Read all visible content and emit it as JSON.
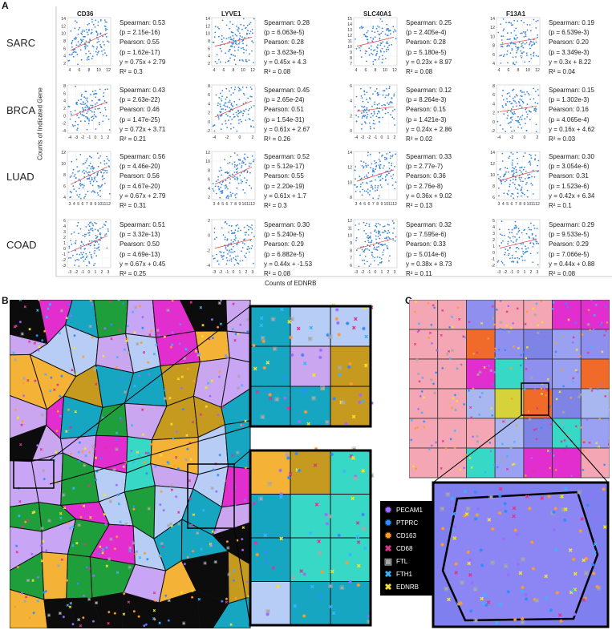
{
  "panels": {
    "a": "A",
    "b": "B",
    "c": "C"
  },
  "labels": {
    "y_axis": "Counts of Indicated Gene",
    "x_axis": "Counts of EDNRB"
  },
  "columns": [
    "CD36",
    "LYVE1",
    "SLC40A1",
    "F13A1"
  ],
  "rows": [
    "SARC",
    "BRCA",
    "LUAD",
    "COAD"
  ],
  "chart_data": {
    "type": "scatter",
    "x_variable": "EDNRB",
    "cells": [
      {
        "row": "SARC",
        "gene": "CD36",
        "xticks": [
          "4",
          "6",
          "8",
          "10",
          "12"
        ],
        "yticks": [
          "14",
          "12",
          "10",
          "8",
          "6",
          "4",
          "2"
        ],
        "stats": [
          "Spearman: 0.53",
          "(p = 2.15e-16)",
          "Pearson: 0.55",
          "(p = 1.62e-17)",
          "y = 0.75x + 2.79",
          "R² = 0.3"
        ],
        "slope": 0.75,
        "intercept": 2.79,
        "r2": 0.3
      },
      {
        "row": "SARC",
        "gene": "LYVE1",
        "xticks": [
          "4",
          "6",
          "8",
          "10",
          "12"
        ],
        "yticks": [
          "14",
          "12",
          "10",
          "8",
          "6",
          "4",
          "2"
        ],
        "stats": [
          "Spearman: 0.28",
          "(p = 6.063e-5)",
          "Pearson: 0.28",
          "(p = 3.623e-5)",
          "y = 0.45x + 4.3",
          "R² = 0.08"
        ],
        "slope": 0.45,
        "intercept": 4.3,
        "r2": 0.08
      },
      {
        "row": "SARC",
        "gene": "SLC40A1",
        "xticks": [
          "4",
          "6",
          "8",
          "10",
          "12"
        ],
        "yticks": [
          "15",
          "14",
          "13",
          "12",
          "11",
          "10",
          "9",
          "8",
          "7"
        ],
        "stats": [
          "Spearman: 0.25",
          "(p = 2.405e-4)",
          "Pearson: 0.28",
          "(p = 5.180e-5)",
          "y = 0.23x + 8.97",
          "R² = 0.08"
        ],
        "slope": 0.23,
        "intercept": 8.97,
        "r2": 0.08
      },
      {
        "row": "SARC",
        "gene": "F13A1",
        "xticks": [
          "4",
          "6",
          "8",
          "10",
          "12"
        ],
        "yticks": [
          "14",
          "12",
          "10",
          "8",
          "6",
          "4"
        ],
        "stats": [
          "Spearman: 0.19",
          "(p = 6.539e-3)",
          "Pearson: 0.20",
          "(p = 3.349e-3)",
          "y = 0.3x + 8.22",
          "R² = 0.04"
        ],
        "slope": 0.3,
        "intercept": 8.22,
        "r2": 0.04
      },
      {
        "row": "BRCA",
        "gene": "CD36",
        "xticks": [
          "-4",
          "-3",
          "-2",
          "-1",
          "0",
          "1",
          "2"
        ],
        "yticks": [
          "8",
          "6",
          "4",
          "2",
          "0",
          "-2",
          "-4"
        ],
        "stats": [
          "Spearman: 0.43",
          "(p = 2.63e-22)",
          "Pearson: 0.46",
          "(p = 1.47e-25)",
          "y = 0.72x + 3.71",
          "R² = 0.21"
        ],
        "slope": 0.72,
        "intercept": 3.71,
        "r2": 0.21
      },
      {
        "row": "BRCA",
        "gene": "LYVE1",
        "xticks": [
          "-4",
          "-2",
          "0",
          "2"
        ],
        "yticks": [
          "8",
          "6",
          "4",
          "2",
          "0",
          "-2"
        ],
        "stats": [
          "Spearman: 0.45",
          "(p = 2.65e-24)",
          "Pearson: 0.51",
          "(p = 1.54e-31)",
          "y = 0.61x + 2.67",
          "R² = 0.26"
        ],
        "slope": 0.61,
        "intercept": 2.67,
        "r2": 0.26
      },
      {
        "row": "BRCA",
        "gene": "SLC40A1",
        "xticks": [
          "-4",
          "-3",
          "-2",
          "-1",
          "0",
          "1",
          "2"
        ],
        "yticks": [
          "6",
          "4",
          "2",
          "0"
        ],
        "stats": [
          "Spearman: 0.12",
          "(p = 8.264e-3)",
          "Pearson: 0.15",
          "(p = 1.421e-3)",
          "y = 0.24x + 2.86",
          "R² = 0.02"
        ],
        "slope": 0.24,
        "intercept": 2.86,
        "r2": 0.02
      },
      {
        "row": "BRCA",
        "gene": "F13A1",
        "xticks": [
          "-4",
          "-2",
          "0",
          "2"
        ],
        "yticks": [
          "8",
          "6",
          "4",
          "2",
          "0",
          "-2"
        ],
        "stats": [
          "Spearman: 0.15",
          "(p = 1.302e-3)",
          "Pearson: 0.16",
          "(p = 4.065e-4)",
          "y = 0.16x + 4.62",
          "R² = 0.03"
        ],
        "slope": 0.16,
        "intercept": 4.62,
        "r2": 0.03
      },
      {
        "row": "LUAD",
        "gene": "CD36",
        "xticks": [
          "3",
          "4",
          "5",
          "6",
          "7",
          "8",
          "9",
          "10",
          "11",
          "12"
        ],
        "yticks": [
          "12",
          "10",
          "8",
          "6",
          "4"
        ],
        "stats": [
          "Spearman: 0.56",
          "(p = 4.46e-20)",
          "Pearson: 0.56",
          "(p = 4.67e-20)",
          "y = 0.67x + 2.79",
          "R² = 0.31"
        ],
        "slope": 0.67,
        "intercept": 2.79,
        "r2": 0.31
      },
      {
        "row": "LUAD",
        "gene": "LYVE1",
        "xticks": [
          "3",
          "4",
          "5",
          "6",
          "7",
          "8",
          "9",
          "10",
          "11",
          "12"
        ],
        "yticks": [
          "12",
          "10",
          "8",
          "6",
          "4",
          "2"
        ],
        "stats": [
          "Spearman: 0.52",
          "(p = 5.12e-17)",
          "Pearson: 0.55",
          "(p = 2.20e-19)",
          "y = 0.61x + 1.7",
          "R² = 0.3"
        ],
        "slope": 0.61,
        "intercept": 1.7,
        "r2": 0.3
      },
      {
        "row": "LUAD",
        "gene": "SLC40A1",
        "xticks": [
          "3",
          "4",
          "5",
          "6",
          "7",
          "8",
          "9",
          "10",
          "11",
          "12"
        ],
        "yticks": [
          "14",
          "12",
          "10",
          "8"
        ],
        "stats": [
          "Spearman: 0.33",
          "(p = 2.77e-7)",
          "Pearson: 0.36",
          "(p = 2.76e-8)",
          "y = 0.36x + 9.02",
          "R² = 0.13"
        ],
        "slope": 0.36,
        "intercept": 9.02,
        "r2": 0.13
      },
      {
        "row": "LUAD",
        "gene": "F13A1",
        "xticks": [
          "3",
          "4",
          "5",
          "6",
          "7",
          "8",
          "9",
          "10",
          "11",
          "12"
        ],
        "yticks": [
          "14",
          "12",
          "10",
          "8",
          "6"
        ],
        "stats": [
          "Spearman: 0.30",
          "(p = 3.054e-6)",
          "Pearson: 0.31",
          "(p = 1.523e-6)",
          "y = 0.42x + 6.34",
          "R² = 0.1"
        ],
        "slope": 0.42,
        "intercept": 6.34,
        "r2": 0.1
      },
      {
        "row": "COAD",
        "gene": "CD36",
        "xticks": [
          "-3",
          "-2",
          "-1",
          "0",
          "1",
          "2",
          "3"
        ],
        "yticks": [
          "6",
          "4",
          "3",
          "2",
          "1",
          "0",
          "-1",
          "-2",
          "-3"
        ],
        "stats": [
          "Spearman: 0.51",
          "(p = 3.32e-13)",
          "Pearson: 0.50",
          "(p = 4.69e-13)",
          "y = 0.67x + 0.45",
          "R² = 0.25"
        ],
        "slope": 0.67,
        "intercept": 0.45,
        "r2": 0.25
      },
      {
        "row": "COAD",
        "gene": "LYVE1",
        "xticks": [
          "-3",
          "-2",
          "-1",
          "0",
          "1",
          "2",
          "3"
        ],
        "yticks": [
          "2",
          "0",
          "-2",
          "-4"
        ],
        "stats": [
          "Spearman: 0.30",
          "(p = 5.240e-5)",
          "Pearson: 0.29",
          "(p = 6.882e-5)",
          "y = 0.44x + -1.53",
          "R² = 0.08"
        ],
        "slope": 0.44,
        "intercept": -1.53,
        "r2": 0.08
      },
      {
        "row": "COAD",
        "gene": "SLC40A1",
        "xticks": [
          "-3",
          "-2",
          "-1",
          "0",
          "1",
          "2",
          "3"
        ],
        "yticks": [
          "12",
          "11",
          "10",
          "9",
          "8",
          "7",
          "6"
        ],
        "stats": [
          "Spearman: 0.32",
          "(p = 7.595e-6)",
          "Pearson: 0.33",
          "(p = 5.014e-6)",
          "y = 0.38x + 8.73",
          "R² = 0.11"
        ],
        "slope": 0.38,
        "intercept": 8.73,
        "r2": 0.11
      },
      {
        "row": "COAD",
        "gene": "F13A1",
        "xticks": [
          "-3",
          "-2",
          "-1",
          "0",
          "1",
          "2",
          "3"
        ],
        "yticks": [
          "5",
          "4",
          "3",
          "2",
          "1",
          "0",
          "-1",
          "-2"
        ],
        "stats": [
          "Spearman: 0.29",
          "(p = 9.533e-5)",
          "Pearson: 0.29",
          "(p = 7.066e-5)",
          "y = 0.44x + 0.88",
          "R² = 0.08"
        ],
        "slope": 0.44,
        "intercept": 0.88,
        "r2": 0.08
      }
    ]
  },
  "legend": [
    {
      "label": "PECAM1",
      "color": "#9b6cff",
      "glyph": "✹"
    },
    {
      "label": "PTPRC",
      "color": "#2f8cff",
      "glyph": "✹"
    },
    {
      "label": "CD163",
      "color": "#ff9a2e",
      "glyph": "✹"
    },
    {
      "label": "CD68",
      "color": "#e0358f",
      "glyph": "✖"
    },
    {
      "label": "FTL",
      "color": "#a8a8a8",
      "glyph": "▣"
    },
    {
      "label": "FTH1",
      "color": "#39b5ff",
      "glyph": "✖"
    },
    {
      "label": "EDNRB",
      "color": "#f2e22e",
      "glyph": "✖"
    }
  ],
  "colors": {
    "scatter_point": "#3a86d9",
    "fit_line": "#e04040",
    "cell_border": "#111111"
  }
}
